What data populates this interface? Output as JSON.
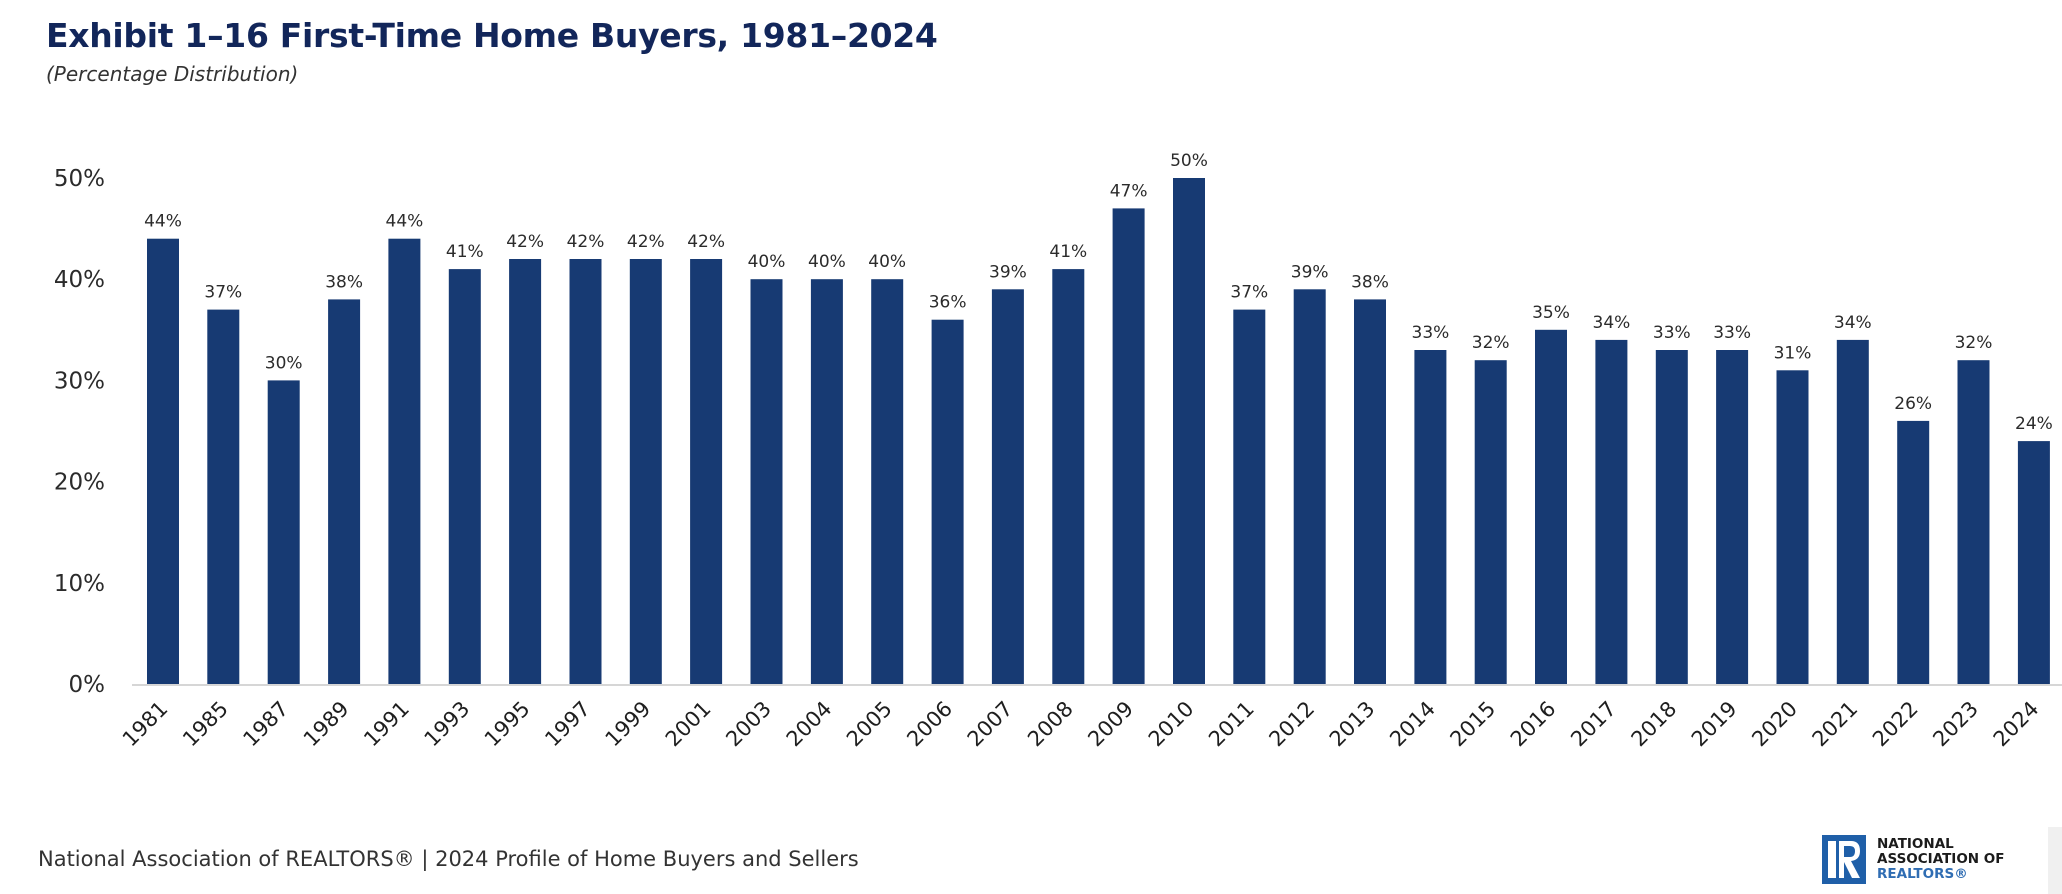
{
  "header": {
    "title": "Exhibit 1–16 First-Time Home Buyers, 1981–2024",
    "subtitle": "(Percentage  Distribution)"
  },
  "footer": {
    "source": "National Association of REALTORS® | 2024 Profile of Home Buyers and Sellers"
  },
  "logo": {
    "line1": "NATIONAL",
    "line2": "ASSOCIATION OF",
    "line3": "REALTORS®",
    "icon": "realtor-r-logo-icon"
  },
  "colors": {
    "bar": "#173a73",
    "title": "#12265a",
    "logo_blue": "#1f5fa8"
  },
  "chart_data": {
    "type": "bar",
    "title": "Exhibit 1–16 First-Time Home Buyers, 1981–2024",
    "subtitle": "(Percentage  Distribution)",
    "xlabel": "",
    "ylabel": "",
    "ylim": [
      0,
      50
    ],
    "yticks": [
      0,
      10,
      20,
      30,
      40,
      50
    ],
    "ytick_labels": [
      "0%",
      "10%",
      "20%",
      "30%",
      "40%",
      "50%"
    ],
    "grid": false,
    "legend": "none",
    "categories": [
      "1981",
      "1985",
      "1987",
      "1989",
      "1991",
      "1993",
      "1995",
      "1997",
      "1999",
      "2001",
      "2003",
      "2004",
      "2005",
      "2006",
      "2007",
      "2008",
      "2009",
      "2010",
      "2011",
      "2012",
      "2013",
      "2014",
      "2015",
      "2016",
      "2017",
      "2018",
      "2019",
      "2020",
      "2021",
      "2022",
      "2023",
      "2024"
    ],
    "values": [
      44,
      37,
      30,
      38,
      44,
      41,
      42,
      42,
      42,
      42,
      40,
      40,
      40,
      36,
      39,
      41,
      47,
      50,
      37,
      39,
      38,
      33,
      32,
      35,
      34,
      33,
      33,
      31,
      34,
      26,
      32,
      24
    ],
    "data_labels": [
      "44%",
      "37%",
      "30%",
      "38%",
      "44%",
      "41%",
      "42%",
      "42%",
      "42%",
      "42%",
      "40%",
      "40%",
      "40%",
      "36%",
      "39%",
      "41%",
      "47%",
      "50%",
      "37%",
      "39%",
      "38%",
      "33%",
      "32%",
      "35%",
      "34%",
      "33%",
      "33%",
      "31%",
      "34%",
      "26%",
      "32%",
      "24%"
    ]
  }
}
